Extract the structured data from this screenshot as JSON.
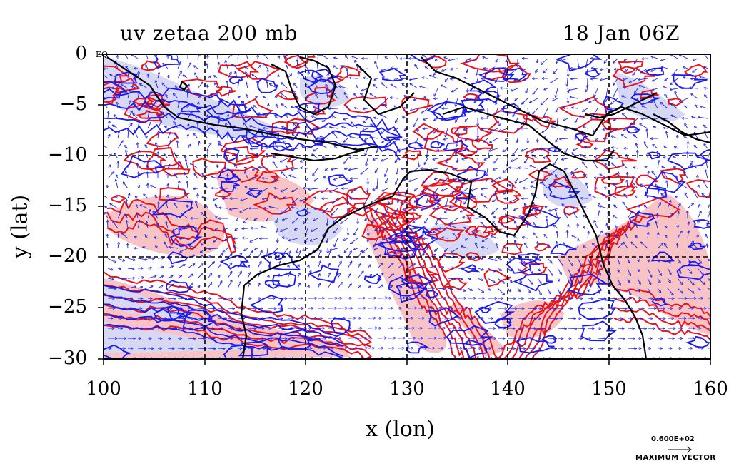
{
  "title_left": "uv zetaa 200 mb",
  "title_right": "18 Jan 06Z",
  "axes": {
    "xlabel": "x (lon)",
    "ylabel": "y (lat)",
    "x_ticks": [
      "100",
      "110",
      "120",
      "130",
      "140",
      "150",
      "160"
    ],
    "y_ticks": [
      "0",
      "−5",
      "−10",
      "−15",
      "−20",
      "−25",
      "−30"
    ],
    "xlim": [
      100,
      160
    ],
    "ylim": [
      -30,
      0
    ]
  },
  "equator_label": "EQ",
  "vector_legend": {
    "value": "0.600E+02",
    "label": "MAXIMUM VECTOR"
  },
  "colors": {
    "positive_contour": "#e8141b",
    "positive_fill": "#f7c3c4",
    "negative_contour": "#1a1aee",
    "negative_fill": "#d6d8f4",
    "vectors": "#2323e6",
    "coastline": "#000000"
  }
}
